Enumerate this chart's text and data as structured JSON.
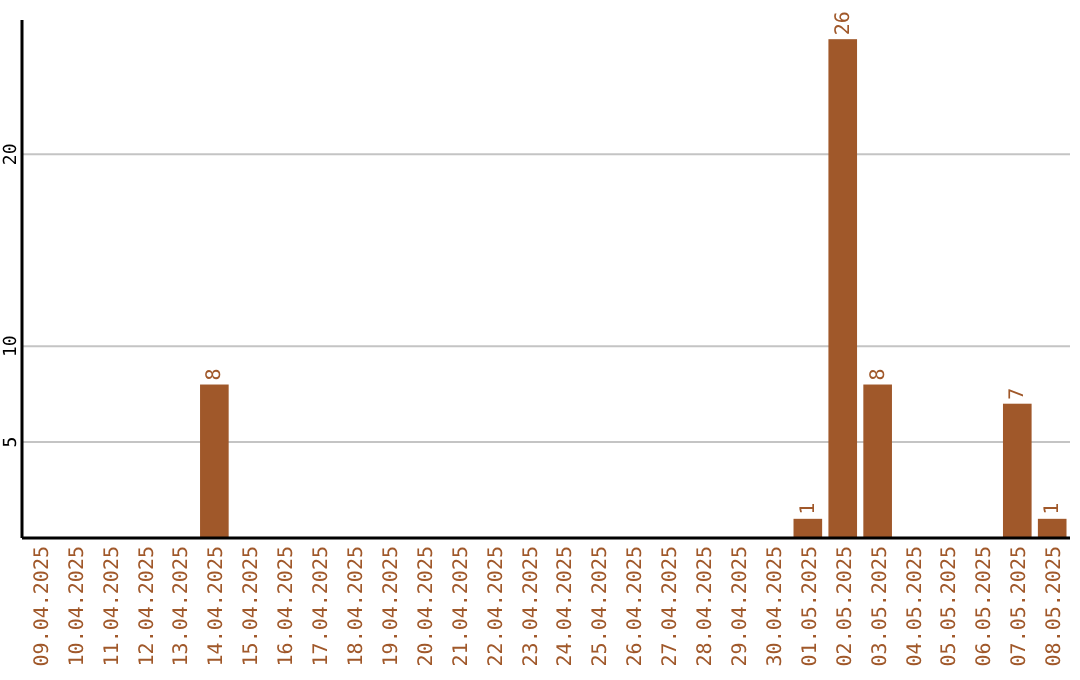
{
  "chart_data": {
    "type": "bar",
    "categories": [
      "09.04.2025",
      "10.04.2025",
      "11.04.2025",
      "12.04.2025",
      "13.04.2025",
      "14.04.2025",
      "15.04.2025",
      "16.04.2025",
      "17.04.2025",
      "18.04.2025",
      "19.04.2025",
      "20.04.2025",
      "21.04.2025",
      "22.04.2025",
      "23.04.2025",
      "24.04.2025",
      "25.04.2025",
      "26.04.2025",
      "27.04.2025",
      "28.04.2025",
      "29.04.2025",
      "30.04.2025",
      "01.05.2025",
      "02.05.2025",
      "03.05.2025",
      "04.05.2025",
      "05.05.2025",
      "06.05.2025",
      "07.05.2025",
      "08.05.2025"
    ],
    "values": [
      0,
      0,
      0,
      0,
      0,
      8,
      0,
      0,
      0,
      0,
      0,
      0,
      0,
      0,
      0,
      0,
      0,
      0,
      0,
      0,
      0,
      0,
      1,
      26,
      8,
      0,
      0,
      0,
      7,
      1
    ],
    "value_labels": [
      null,
      null,
      null,
      null,
      null,
      "8",
      null,
      null,
      null,
      null,
      null,
      null,
      null,
      null,
      null,
      null,
      null,
      null,
      null,
      null,
      null,
      null,
      "1",
      "26",
      "8",
      null,
      null,
      null,
      "7",
      "1"
    ],
    "color": "#a0582a",
    "ylim": [
      0,
      27
    ],
    "yticks": [
      5,
      10,
      20
    ],
    "grid": "y"
  }
}
